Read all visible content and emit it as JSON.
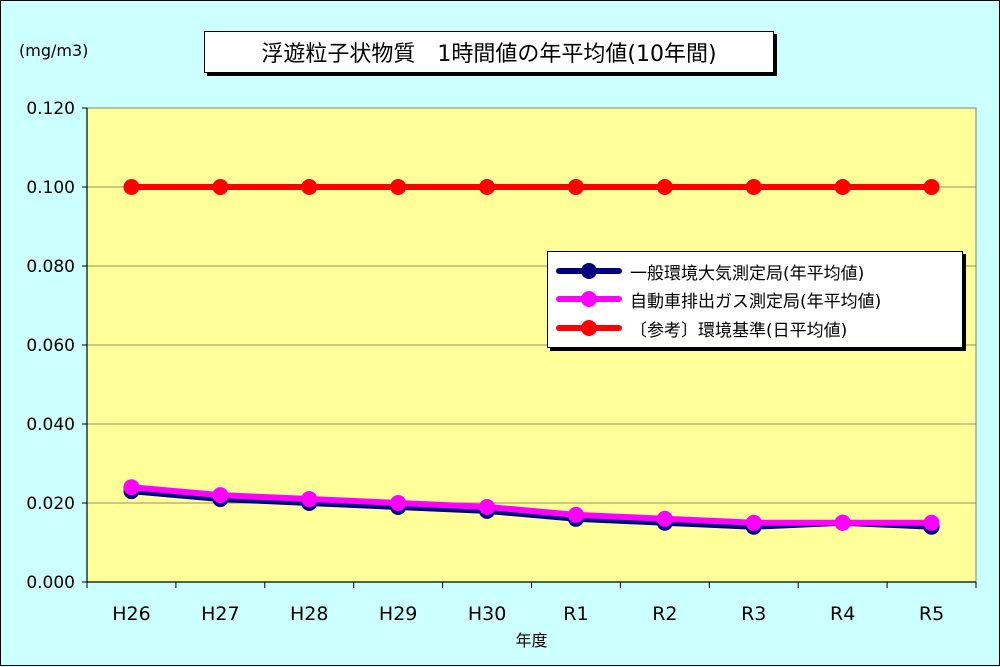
{
  "chart_data": {
    "type": "line",
    "title": "浮遊粒子状物質　1時間値の年平均値(10年間)",
    "unit_label": "(mg/m3)",
    "xlabel": "年度",
    "ylabel": "",
    "categories": [
      "H26",
      "H27",
      "H28",
      "H29",
      "H30",
      "R1",
      "R2",
      "R3",
      "R4",
      "R5"
    ],
    "ylim": [
      0.0,
      0.12
    ],
    "yticks": [
      "0.000",
      "0.020",
      "0.040",
      "0.060",
      "0.080",
      "0.100",
      "0.120"
    ],
    "ytick_values": [
      0.0,
      0.02,
      0.04,
      0.06,
      0.08,
      0.1,
      0.12
    ],
    "grid": true,
    "legend_position": "right",
    "plot_background": "#ffff99",
    "page_background": "#ccffff",
    "series": [
      {
        "name": "一般環境大気測定局(年平均値)",
        "color": "#000080",
        "values": [
          0.023,
          0.021,
          0.02,
          0.019,
          0.018,
          0.016,
          0.015,
          0.014,
          0.015,
          0.014
        ]
      },
      {
        "name": "自動車排出ガス測定局(年平均値)",
        "color": "#ff00ff",
        "values": [
          0.024,
          0.022,
          0.021,
          0.02,
          0.019,
          0.017,
          0.016,
          0.015,
          0.015,
          0.015
        ]
      },
      {
        "name": "〔参考〕環境基準(日平均値)",
        "color": "#ff0000",
        "values": [
          0.1,
          0.1,
          0.1,
          0.1,
          0.1,
          0.1,
          0.1,
          0.1,
          0.1,
          0.1
        ]
      }
    ]
  }
}
